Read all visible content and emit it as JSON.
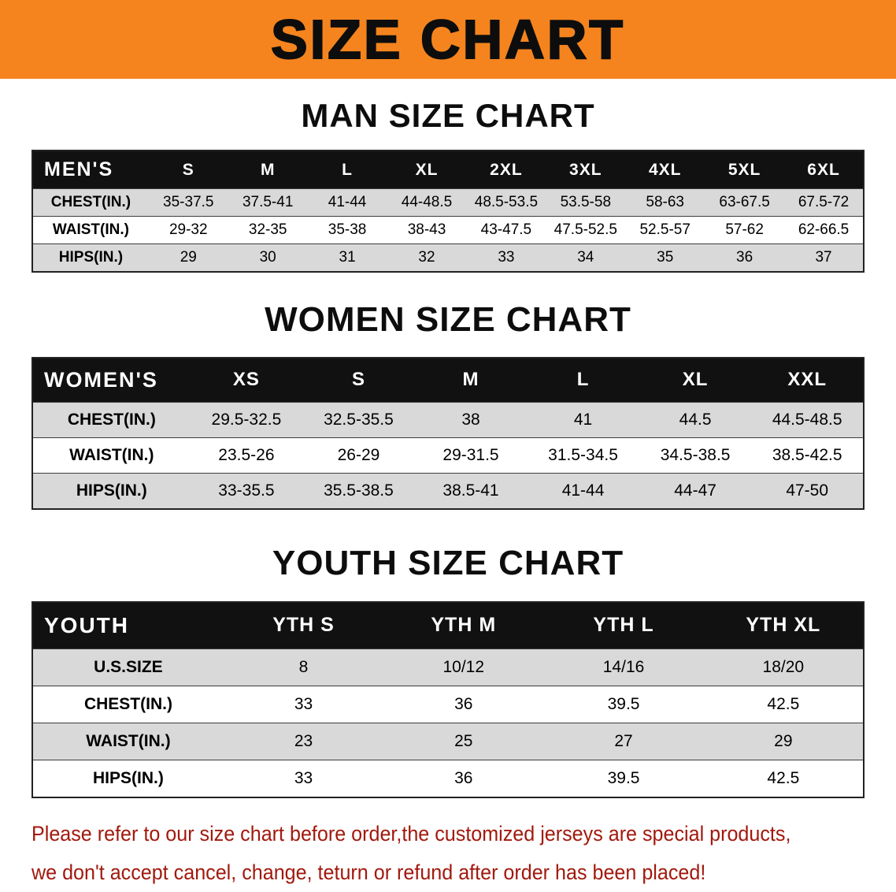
{
  "banner": {
    "title": "SIZE CHART"
  },
  "sections": [
    {
      "id": "men",
      "heading": "MAN SIZE CHART",
      "table": {
        "header": [
          "MEN'S",
          "S",
          "M",
          "L",
          "XL",
          "2XL",
          "3XL",
          "4XL",
          "5XL",
          "6XL"
        ],
        "rows": [
          {
            "label": "CHEST(IN.)",
            "values": [
              "35-37.5",
              "37.5-41",
              "41-44",
              "44-48.5",
              "48.5-53.5",
              "53.5-58",
              "58-63",
              "63-67.5",
              "67.5-72"
            ]
          },
          {
            "label": "WAIST(IN.)",
            "values": [
              "29-32",
              "32-35",
              "35-38",
              "38-43",
              "43-47.5",
              "47.5-52.5",
              "52.5-57",
              "57-62",
              "62-66.5"
            ]
          },
          {
            "label": "HIPS(IN.)",
            "values": [
              "29",
              "30",
              "31",
              "32",
              "33",
              "34",
              "35",
              "36",
              "37"
            ]
          }
        ]
      }
    },
    {
      "id": "women",
      "heading": "WOMEN SIZE CHART",
      "table": {
        "header": [
          "WOMEN'S",
          "XS",
          "S",
          "M",
          "L",
          "XL",
          "XXL"
        ],
        "rows": [
          {
            "label": "CHEST(IN.)",
            "values": [
              "29.5-32.5",
              "32.5-35.5",
              "38",
              "41",
              "44.5",
              "44.5-48.5"
            ]
          },
          {
            "label": "WAIST(IN.)",
            "values": [
              "23.5-26",
              "26-29",
              "29-31.5",
              "31.5-34.5",
              "34.5-38.5",
              "38.5-42.5"
            ]
          },
          {
            "label": "HIPS(IN.)",
            "values": [
              "33-35.5",
              "35.5-38.5",
              "38.5-41",
              "41-44",
              "44-47",
              "47-50"
            ]
          }
        ]
      }
    },
    {
      "id": "youth",
      "heading": "YOUTH SIZE CHART",
      "table": {
        "header": [
          "YOUTH",
          "YTH S",
          "YTH M",
          "YTH L",
          "YTH XL"
        ],
        "rows": [
          {
            "label": "U.S.SIZE",
            "values": [
              "8",
              "10/12",
              "14/16",
              "18/20"
            ]
          },
          {
            "label": "CHEST(IN.)",
            "values": [
              "33",
              "36",
              "39.5",
              "42.5"
            ]
          },
          {
            "label": "WAIST(IN.)",
            "values": [
              "23",
              "25",
              "27",
              "29"
            ]
          },
          {
            "label": "HIPS(IN.)",
            "values": [
              "33",
              "36",
              "39.5",
              "42.5"
            ]
          }
        ]
      }
    }
  ],
  "disclaimer": {
    "line1": "Please refer to our size chart before order,the customized jerseys are special products,",
    "line2": "we don't accept cancel, change, teturn or refund after order has been placed!"
  },
  "colors": {
    "banner_orange": "#F5841E",
    "header_black": "#111111",
    "row_stripe_gray": "#D9D9D9",
    "disclaimer_red": "#A2190D"
  }
}
